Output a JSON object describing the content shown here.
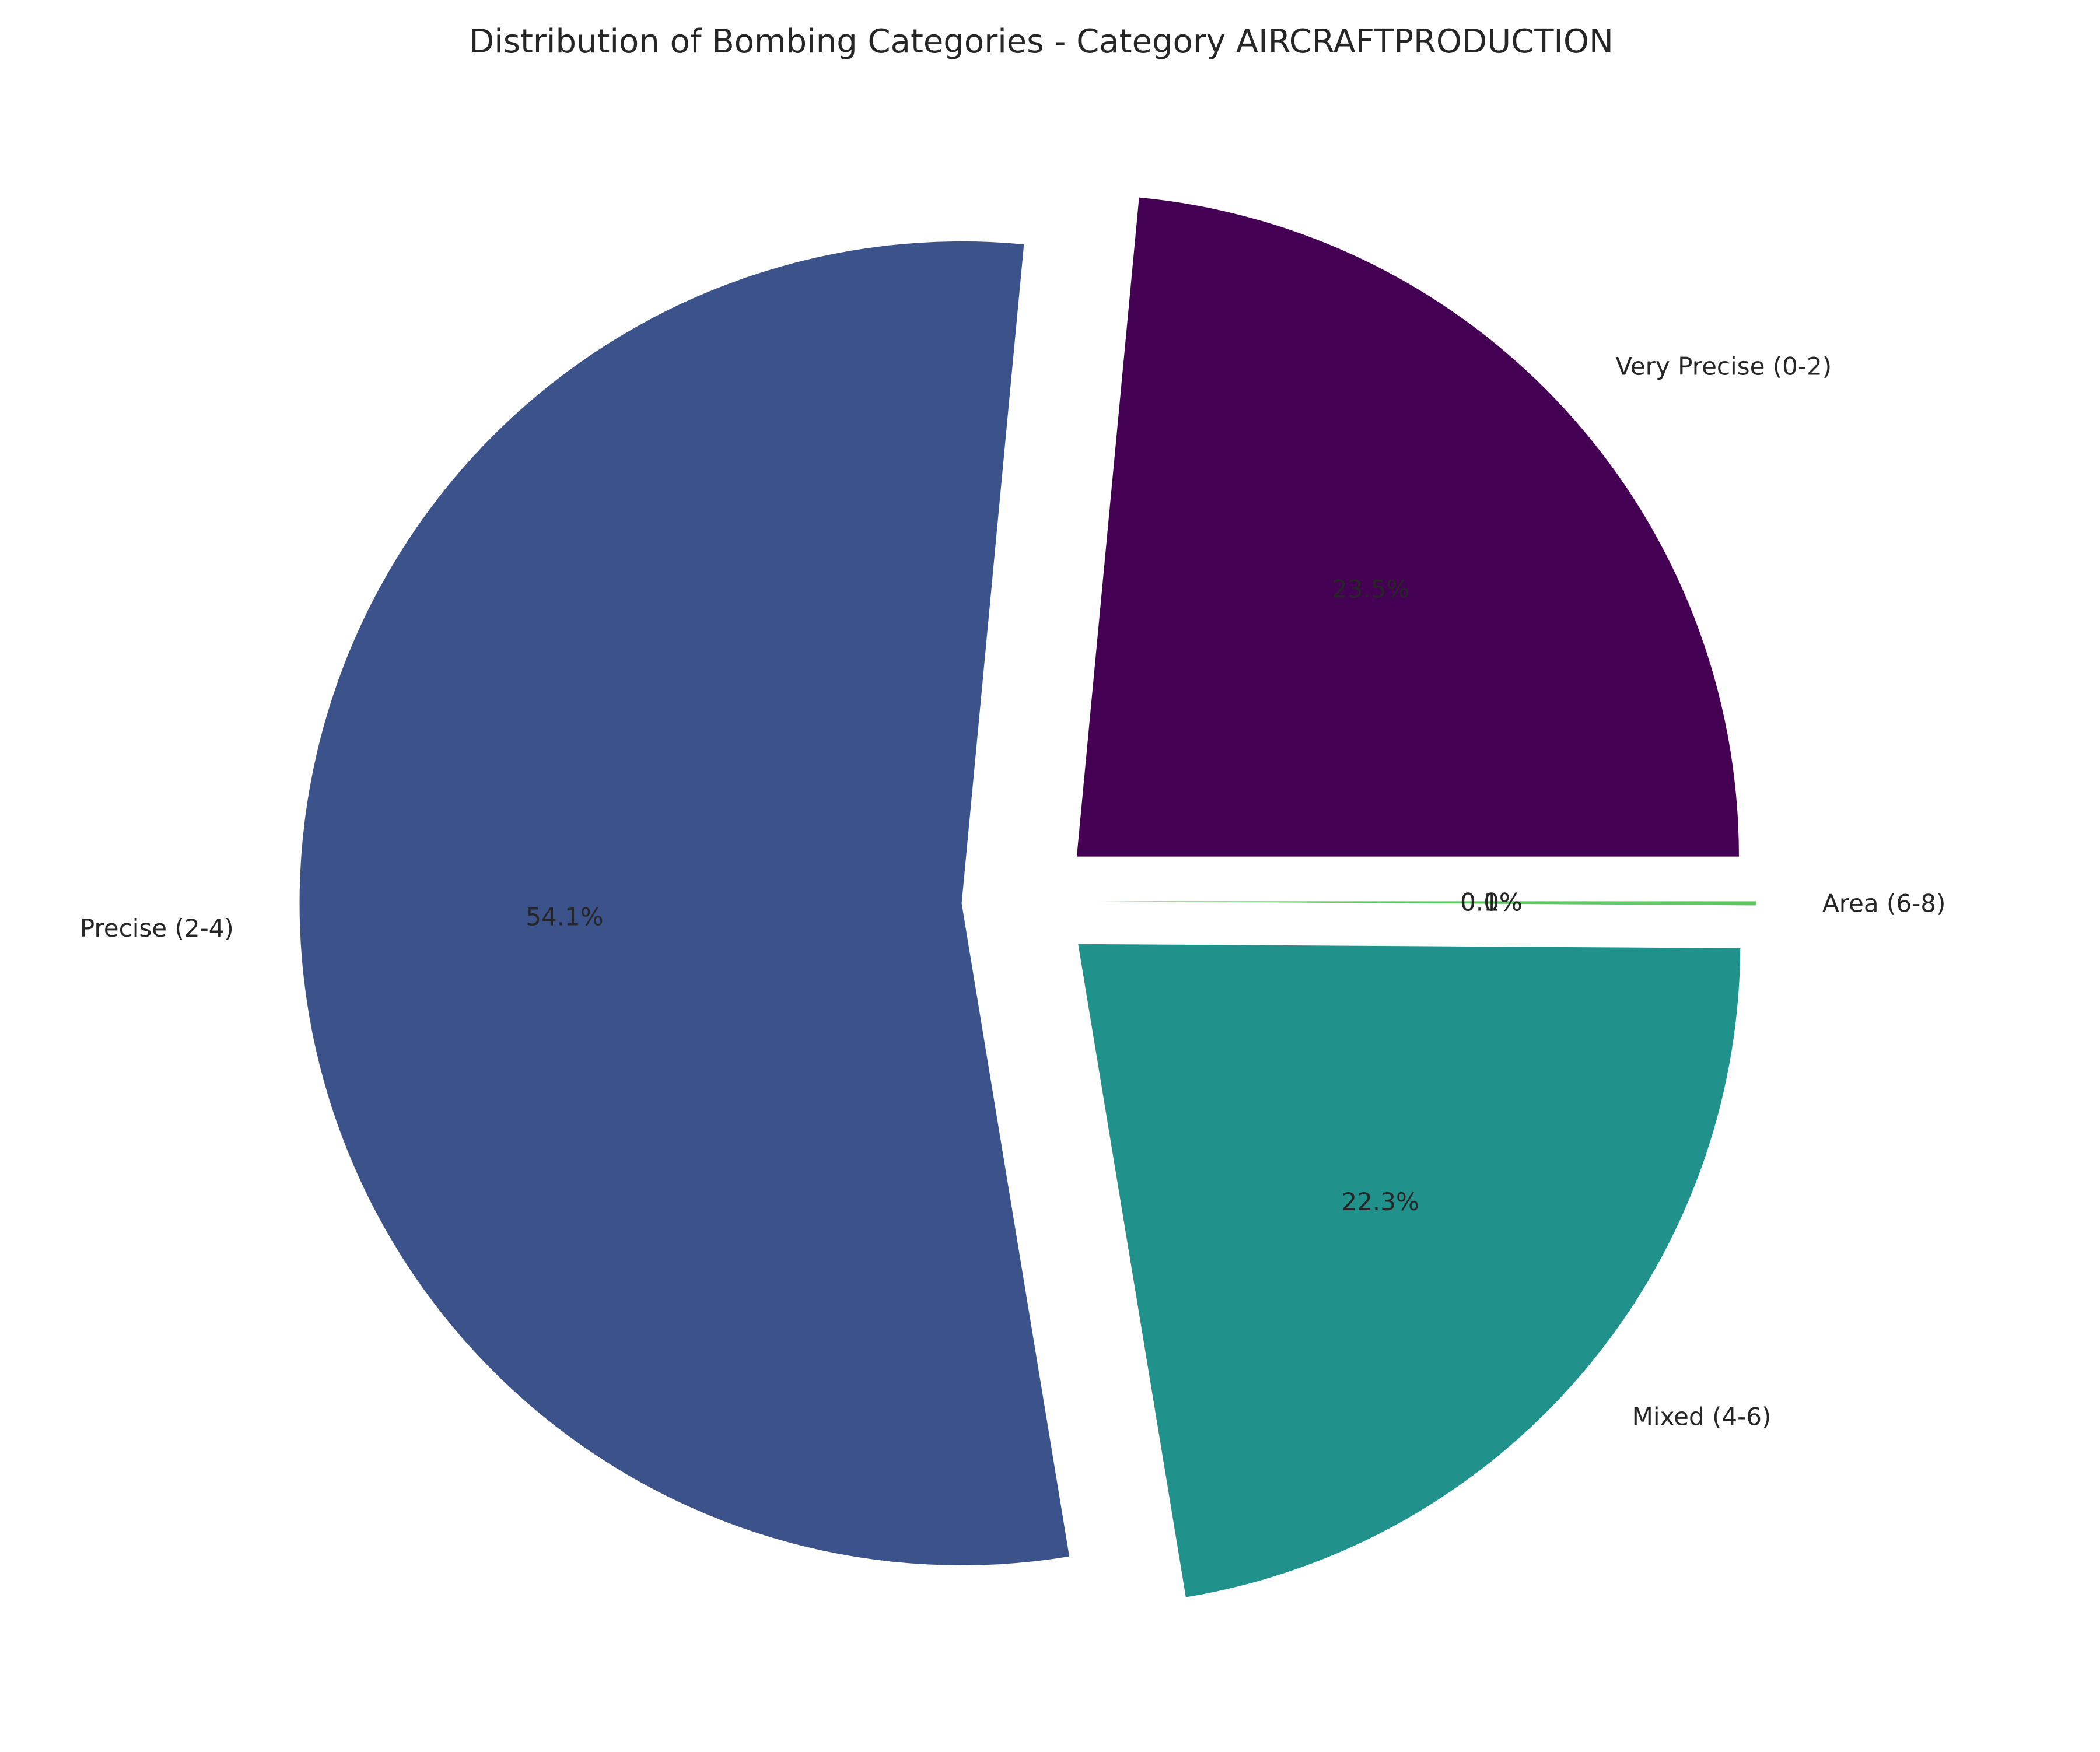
{
  "chart_data": {
    "type": "pie",
    "title": "Distribution of Bombing Categories - Category AIRCRAFTPRODUCTION",
    "labels": [
      "Very Precise (0-2)",
      "Precise (2-4)",
      "Mixed (4-6)",
      "Area (6-8)"
    ],
    "values": [
      23.5,
      54.1,
      22.3,
      0.1
    ],
    "value_labels": [
      "23.5%",
      "54.1%",
      "22.3%",
      "0.1%"
    ],
    "extra_labels": [
      "0.0%"
    ],
    "colors": [
      "#440154",
      "#3b528b",
      "#21918c",
      "#5ec962"
    ],
    "explode": [
      0.1,
      0.1,
      0.1,
      0.1
    ],
    "start_angle_deg": 0,
    "direction": "counterclockwise",
    "legend": "none"
  }
}
